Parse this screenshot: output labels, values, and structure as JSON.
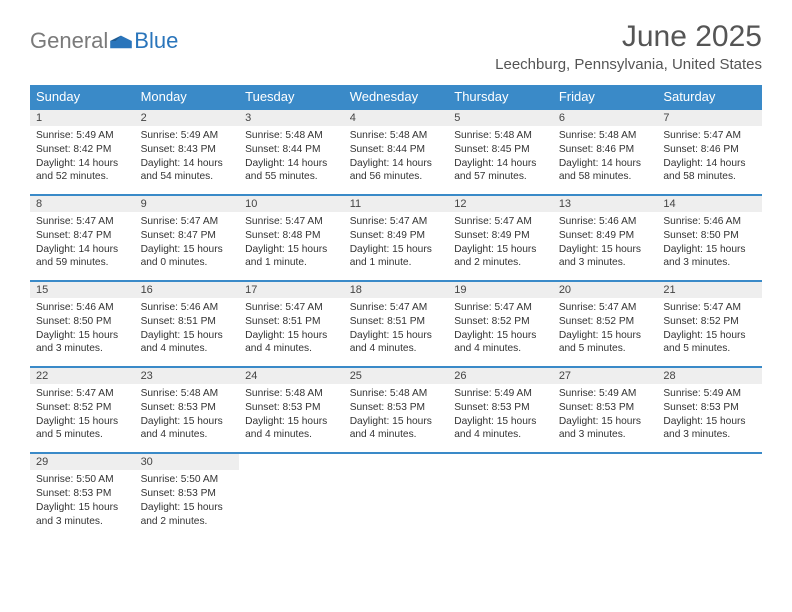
{
  "brand": {
    "part1": "General",
    "part2": "Blue"
  },
  "title": "June 2025",
  "location": "Leechburg, Pennsylvania, United States",
  "colors": {
    "header_bg": "#3a8ac8",
    "header_text": "#ffffff",
    "daynum_bg": "#eeeeee",
    "row_border": "#3a8ac8",
    "brand_gray": "#7a7a7a",
    "brand_blue": "#2a75bb",
    "text": "#333333"
  },
  "layout": {
    "type": "calendar",
    "cols": 7,
    "rows": 5,
    "font_family": "Arial",
    "daynum_fontsize": 11,
    "cell_fontsize": 10.2,
    "header_fontsize": 13,
    "title_fontsize": 30,
    "location_fontsize": 15
  },
  "weekdays": [
    "Sunday",
    "Monday",
    "Tuesday",
    "Wednesday",
    "Thursday",
    "Friday",
    "Saturday"
  ],
  "days": {
    "1": {
      "sunrise": "5:49 AM",
      "sunset": "8:42 PM",
      "daylight": "14 hours and 52 minutes."
    },
    "2": {
      "sunrise": "5:49 AM",
      "sunset": "8:43 PM",
      "daylight": "14 hours and 54 minutes."
    },
    "3": {
      "sunrise": "5:48 AM",
      "sunset": "8:44 PM",
      "daylight": "14 hours and 55 minutes."
    },
    "4": {
      "sunrise": "5:48 AM",
      "sunset": "8:44 PM",
      "daylight": "14 hours and 56 minutes."
    },
    "5": {
      "sunrise": "5:48 AM",
      "sunset": "8:45 PM",
      "daylight": "14 hours and 57 minutes."
    },
    "6": {
      "sunrise": "5:48 AM",
      "sunset": "8:46 PM",
      "daylight": "14 hours and 58 minutes."
    },
    "7": {
      "sunrise": "5:47 AM",
      "sunset": "8:46 PM",
      "daylight": "14 hours and 58 minutes."
    },
    "8": {
      "sunrise": "5:47 AM",
      "sunset": "8:47 PM",
      "daylight": "14 hours and 59 minutes."
    },
    "9": {
      "sunrise": "5:47 AM",
      "sunset": "8:47 PM",
      "daylight": "15 hours and 0 minutes."
    },
    "10": {
      "sunrise": "5:47 AM",
      "sunset": "8:48 PM",
      "daylight": "15 hours and 1 minute."
    },
    "11": {
      "sunrise": "5:47 AM",
      "sunset": "8:49 PM",
      "daylight": "15 hours and 1 minute."
    },
    "12": {
      "sunrise": "5:47 AM",
      "sunset": "8:49 PM",
      "daylight": "15 hours and 2 minutes."
    },
    "13": {
      "sunrise": "5:46 AM",
      "sunset": "8:49 PM",
      "daylight": "15 hours and 3 minutes."
    },
    "14": {
      "sunrise": "5:46 AM",
      "sunset": "8:50 PM",
      "daylight": "15 hours and 3 minutes."
    },
    "15": {
      "sunrise": "5:46 AM",
      "sunset": "8:50 PM",
      "daylight": "15 hours and 3 minutes."
    },
    "16": {
      "sunrise": "5:46 AM",
      "sunset": "8:51 PM",
      "daylight": "15 hours and 4 minutes."
    },
    "17": {
      "sunrise": "5:47 AM",
      "sunset": "8:51 PM",
      "daylight": "15 hours and 4 minutes."
    },
    "18": {
      "sunrise": "5:47 AM",
      "sunset": "8:51 PM",
      "daylight": "15 hours and 4 minutes."
    },
    "19": {
      "sunrise": "5:47 AM",
      "sunset": "8:52 PM",
      "daylight": "15 hours and 4 minutes."
    },
    "20": {
      "sunrise": "5:47 AM",
      "sunset": "8:52 PM",
      "daylight": "15 hours and 5 minutes."
    },
    "21": {
      "sunrise": "5:47 AM",
      "sunset": "8:52 PM",
      "daylight": "15 hours and 5 minutes."
    },
    "22": {
      "sunrise": "5:47 AM",
      "sunset": "8:52 PM",
      "daylight": "15 hours and 5 minutes."
    },
    "23": {
      "sunrise": "5:48 AM",
      "sunset": "8:53 PM",
      "daylight": "15 hours and 4 minutes."
    },
    "24": {
      "sunrise": "5:48 AM",
      "sunset": "8:53 PM",
      "daylight": "15 hours and 4 minutes."
    },
    "25": {
      "sunrise": "5:48 AM",
      "sunset": "8:53 PM",
      "daylight": "15 hours and 4 minutes."
    },
    "26": {
      "sunrise": "5:49 AM",
      "sunset": "8:53 PM",
      "daylight": "15 hours and 4 minutes."
    },
    "27": {
      "sunrise": "5:49 AM",
      "sunset": "8:53 PM",
      "daylight": "15 hours and 3 minutes."
    },
    "28": {
      "sunrise": "5:49 AM",
      "sunset": "8:53 PM",
      "daylight": "15 hours and 3 minutes."
    },
    "29": {
      "sunrise": "5:50 AM",
      "sunset": "8:53 PM",
      "daylight": "15 hours and 3 minutes."
    },
    "30": {
      "sunrise": "5:50 AM",
      "sunset": "8:53 PM",
      "daylight": "15 hours and 2 minutes."
    }
  },
  "grid": [
    [
      1,
      2,
      3,
      4,
      5,
      6,
      7
    ],
    [
      8,
      9,
      10,
      11,
      12,
      13,
      14
    ],
    [
      15,
      16,
      17,
      18,
      19,
      20,
      21
    ],
    [
      22,
      23,
      24,
      25,
      26,
      27,
      28
    ],
    [
      29,
      30,
      null,
      null,
      null,
      null,
      null
    ]
  ]
}
